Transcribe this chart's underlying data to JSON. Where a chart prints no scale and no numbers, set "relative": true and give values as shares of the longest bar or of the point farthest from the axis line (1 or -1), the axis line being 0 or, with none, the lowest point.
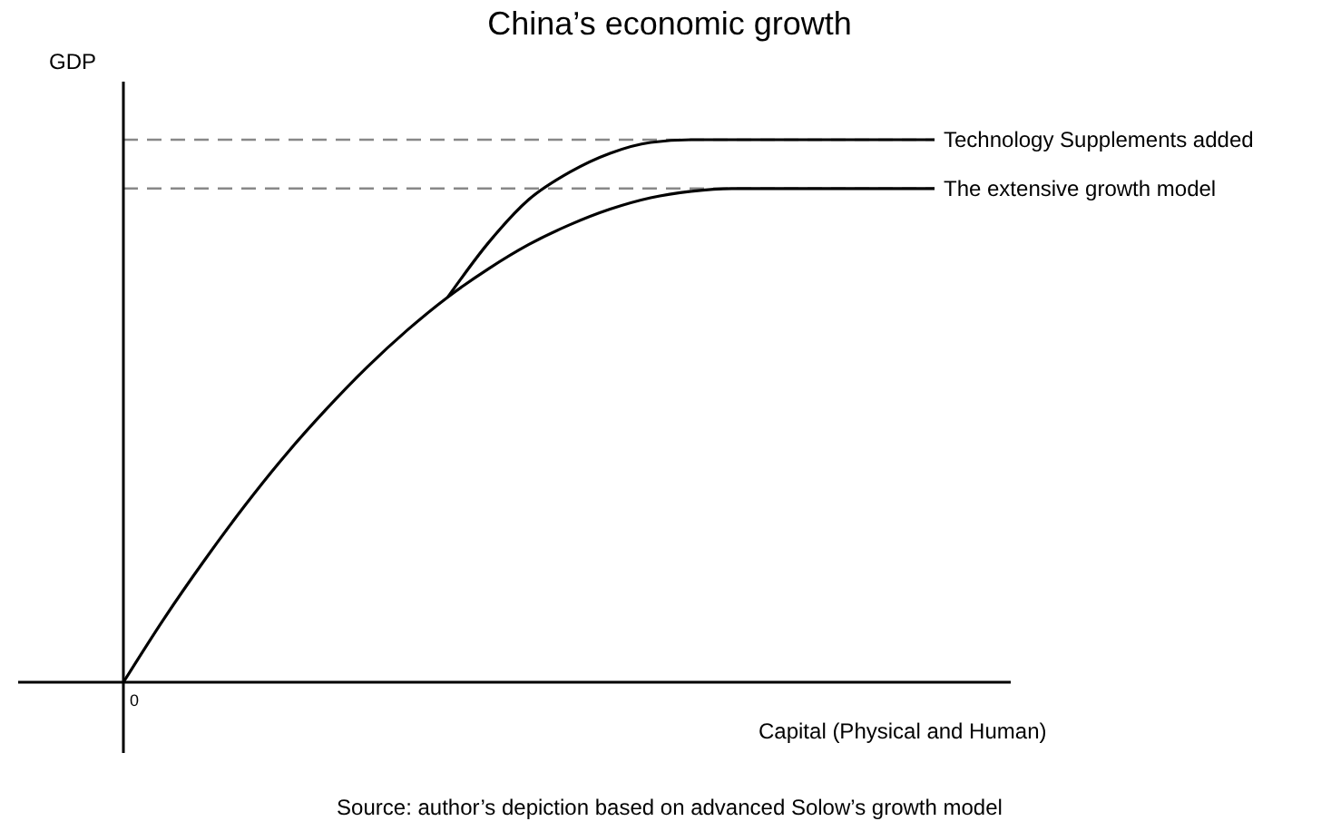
{
  "chart_data": {
    "type": "line",
    "title": "China’s economic growth",
    "xlabel": "Capital (Physical and Human)",
    "ylabel": "GDP",
    "relative": true,
    "categories": [
      null,
      null,
      null,
      null,
      null,
      null,
      null,
      null,
      null,
      null,
      null,
      null,
      null,
      null,
      null,
      null,
      null,
      null,
      null,
      null,
      null
    ],
    "series": [
      {
        "name": "Technology Supplements added",
        "color": "#000000",
        "values": [
          null,
          null,
          null,
          null,
          null,
          null,
          null,
          null,
          0.71,
          0.81,
          0.89,
          0.94,
          0.975,
          0.995,
          1.0,
          1.0,
          1.0,
          1.0,
          1.0,
          1.0,
          1.0
        ]
      },
      {
        "name": "The extensive growth model",
        "color": "#000000",
        "values": [
          0,
          0.117,
          0.225,
          0.326,
          0.419,
          0.503,
          0.58,
          0.649,
          0.71,
          0.762,
          0.807,
          0.843,
          0.872,
          0.893,
          0.905,
          0.91,
          0.91,
          0.91,
          0.91,
          0.91,
          0.91
        ]
      }
    ],
    "ref_lines": [
      {
        "axis": "y",
        "value": 1.0,
        "color": "#888888",
        "line_style": "dashed"
      },
      {
        "axis": "y",
        "value": 0.91,
        "color": "#888888",
        "line_style": "dashed"
      }
    ],
    "annotations": [
      "0",
      "Source: author’s depiction based on advanced Solow’s growth model"
    ]
  }
}
